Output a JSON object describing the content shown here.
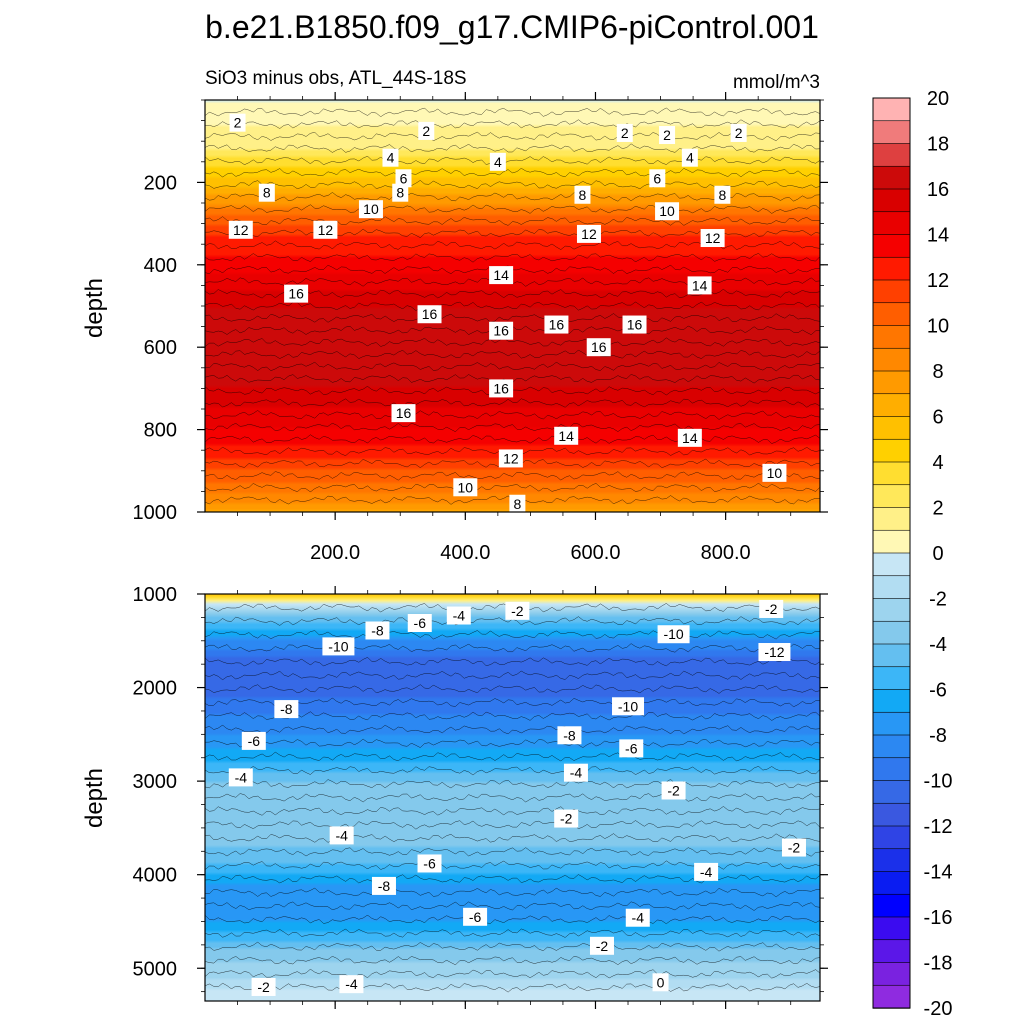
{
  "title": "b.e21.B1850.f09_g17.CMIP6-piControl.001",
  "subtitle_left": "SiO3 minus obs, ATL_44S-18S",
  "subtitle_right": "mmol/m^3",
  "chart_data": [
    {
      "type": "contour",
      "panel": "upper",
      "ylabel": "depth",
      "xlabel": "",
      "xlim": [
        0,
        945
      ],
      "ylim": [
        1000,
        0
      ],
      "x_ticks": [
        "200.0",
        "400.0",
        "600.0",
        "800.0"
      ],
      "y_ticks": [
        "200",
        "400",
        "600",
        "800",
        "1000"
      ],
      "depth_profile": [
        {
          "depth": 0,
          "value": 0
        },
        {
          "depth": 120,
          "value": 2
        },
        {
          "depth": 160,
          "value": 4
        },
        {
          "depth": 210,
          "value": 6
        },
        {
          "depth": 250,
          "value": 8
        },
        {
          "depth": 280,
          "value": 10
        },
        {
          "depth": 330,
          "value": 12
        },
        {
          "depth": 420,
          "value": 14
        },
        {
          "depth": 500,
          "value": 16
        },
        {
          "depth": 600,
          "value": 17
        },
        {
          "depth": 700,
          "value": 16
        },
        {
          "depth": 800,
          "value": 14
        },
        {
          "depth": 870,
          "value": 12
        },
        {
          "depth": 930,
          "value": 10
        },
        {
          "depth": 980,
          "value": 8
        },
        {
          "depth": 1000,
          "value": 7
        }
      ],
      "contour_labels": [
        {
          "text": "2",
          "x": 50,
          "depth": 55
        },
        {
          "text": "2",
          "x": 340,
          "depth": 75
        },
        {
          "text": "2",
          "x": 645,
          "depth": 80
        },
        {
          "text": "2",
          "x": 820,
          "depth": 80
        },
        {
          "text": "2",
          "x": 710,
          "depth": 85
        },
        {
          "text": "4",
          "x": 285,
          "depth": 140
        },
        {
          "text": "4",
          "x": 745,
          "depth": 140
        },
        {
          "text": "4",
          "x": 450,
          "depth": 150
        },
        {
          "text": "6",
          "x": 305,
          "depth": 190
        },
        {
          "text": "6",
          "x": 695,
          "depth": 190
        },
        {
          "text": "8",
          "x": 95,
          "depth": 225
        },
        {
          "text": "8",
          "x": 300,
          "depth": 225
        },
        {
          "text": "8",
          "x": 580,
          "depth": 230
        },
        {
          "text": "8",
          "x": 795,
          "depth": 230
        },
        {
          "text": "10",
          "x": 255,
          "depth": 265
        },
        {
          "text": "10",
          "x": 710,
          "depth": 270
        },
        {
          "text": "12",
          "x": 55,
          "depth": 315
        },
        {
          "text": "12",
          "x": 185,
          "depth": 315
        },
        {
          "text": "12",
          "x": 590,
          "depth": 325
        },
        {
          "text": "12",
          "x": 780,
          "depth": 335
        },
        {
          "text": "14",
          "x": 455,
          "depth": 425
        },
        {
          "text": "14",
          "x": 760,
          "depth": 450
        },
        {
          "text": "16",
          "x": 140,
          "depth": 470
        },
        {
          "text": "16",
          "x": 345,
          "depth": 520
        },
        {
          "text": "16",
          "x": 540,
          "depth": 545
        },
        {
          "text": "16",
          "x": 660,
          "depth": 545
        },
        {
          "text": "16",
          "x": 455,
          "depth": 560
        },
        {
          "text": "16",
          "x": 605,
          "depth": 600
        },
        {
          "text": "16",
          "x": 455,
          "depth": 700
        },
        {
          "text": "16",
          "x": 305,
          "depth": 760
        },
        {
          "text": "14",
          "x": 555,
          "depth": 815
        },
        {
          "text": "14",
          "x": 745,
          "depth": 820
        },
        {
          "text": "12",
          "x": 470,
          "depth": 870
        },
        {
          "text": "10",
          "x": 875,
          "depth": 905
        },
        {
          "text": "10",
          "x": 400,
          "depth": 940
        },
        {
          "text": "8",
          "x": 480,
          "depth": 980
        }
      ]
    },
    {
      "type": "contour",
      "panel": "lower",
      "ylabel": "depth",
      "xlabel": "",
      "xlim": [
        0,
        945
      ],
      "ylim": [
        5350,
        1000
      ],
      "y_ticks": [
        "1000",
        "2000",
        "3000",
        "4000",
        "5000"
      ],
      "depth_profile": [
        {
          "depth": 1000,
          "value": 6
        },
        {
          "depth": 1100,
          "value": 0
        },
        {
          "depth": 1250,
          "value": -4
        },
        {
          "depth": 1500,
          "value": -8
        },
        {
          "depth": 1750,
          "value": -11
        },
        {
          "depth": 2100,
          "value": -10
        },
        {
          "depth": 2500,
          "value": -8
        },
        {
          "depth": 2800,
          "value": -6
        },
        {
          "depth": 3100,
          "value": -3
        },
        {
          "depth": 3500,
          "value": -3
        },
        {
          "depth": 3900,
          "value": -5
        },
        {
          "depth": 4200,
          "value": -8
        },
        {
          "depth": 4500,
          "value": -7
        },
        {
          "depth": 4800,
          "value": -4
        },
        {
          "depth": 5100,
          "value": -2
        },
        {
          "depth": 5350,
          "value": 0
        }
      ],
      "contour_labels": [
        {
          "text": "-2",
          "x": 480,
          "depth": 1180
        },
        {
          "text": "-4",
          "x": 390,
          "depth": 1230
        },
        {
          "text": "-2",
          "x": 870,
          "depth": 1160
        },
        {
          "text": "-6",
          "x": 330,
          "depth": 1310
        },
        {
          "text": "-8",
          "x": 265,
          "depth": 1390
        },
        {
          "text": "-10",
          "x": 720,
          "depth": 1430
        },
        {
          "text": "-10",
          "x": 205,
          "depth": 1560
        },
        {
          "text": "-12",
          "x": 875,
          "depth": 1620
        },
        {
          "text": "-8",
          "x": 125,
          "depth": 2230
        },
        {
          "text": "-10",
          "x": 650,
          "depth": 2200
        },
        {
          "text": "-6",
          "x": 75,
          "depth": 2570
        },
        {
          "text": "-8",
          "x": 560,
          "depth": 2510
        },
        {
          "text": "-6",
          "x": 655,
          "depth": 2650
        },
        {
          "text": "-4",
          "x": 55,
          "depth": 2960
        },
        {
          "text": "-4",
          "x": 570,
          "depth": 2910
        },
        {
          "text": "-2",
          "x": 720,
          "depth": 3100
        },
        {
          "text": "-2",
          "x": 555,
          "depth": 3400
        },
        {
          "text": "-4",
          "x": 210,
          "depth": 3580
        },
        {
          "text": "-2",
          "x": 905,
          "depth": 3710
        },
        {
          "text": "-6",
          "x": 345,
          "depth": 3880
        },
        {
          "text": "-4",
          "x": 770,
          "depth": 3970
        },
        {
          "text": "-8",
          "x": 275,
          "depth": 4120
        },
        {
          "text": "-4",
          "x": 665,
          "depth": 4460
        },
        {
          "text": "-6",
          "x": 415,
          "depth": 4450
        },
        {
          "text": "-2",
          "x": 610,
          "depth": 4760
        },
        {
          "text": "0",
          "x": 700,
          "depth": 5150
        },
        {
          "text": "-4",
          "x": 225,
          "depth": 5170
        },
        {
          "text": "-2",
          "x": 90,
          "depth": 5200
        }
      ]
    }
  ],
  "colorbar": {
    "levels": [
      20,
      18,
      16,
      14,
      12,
      10,
      8,
      6,
      4,
      2,
      0,
      -2,
      -4,
      -6,
      -8,
      -10,
      -12,
      -14,
      -16,
      -18,
      -20
    ],
    "labels": [
      "20",
      "18",
      "16",
      "14",
      "12",
      "10",
      "8",
      "6",
      "4",
      "2",
      "0",
      "-2",
      "-4",
      "-6",
      "-8",
      "-10",
      "-12",
      "-14",
      "-16",
      "-18",
      "-20"
    ],
    "colors": [
      "#ffb3b3",
      "#f07b7b",
      "#de4040",
      "#cc0a0a",
      "#d90000",
      "#e90000",
      "#f50000",
      "#ff1a00",
      "#ff4000",
      "#ff5e00",
      "#ff7600",
      "#ff8800",
      "#ff9a00",
      "#ffae00",
      "#ffc000",
      "#ffd000",
      "#ffde30",
      "#ffe85a",
      "#fff088",
      "#fff8b5",
      "#c7e6f5",
      "#b2ddf2",
      "#9dd4ee",
      "#84c9ec",
      "#64bff0",
      "#3cb6f7",
      "#12a9f5",
      "#2897f5",
      "#2c88f2",
      "#3078ee",
      "#3669e6",
      "#3a58e0",
      "#2f44e5",
      "#1b30ea",
      "#0a1cf2",
      "#0000ff",
      "#3b0bf0",
      "#5b17e8",
      "#7a22e0",
      "#8f2be0"
    ]
  }
}
